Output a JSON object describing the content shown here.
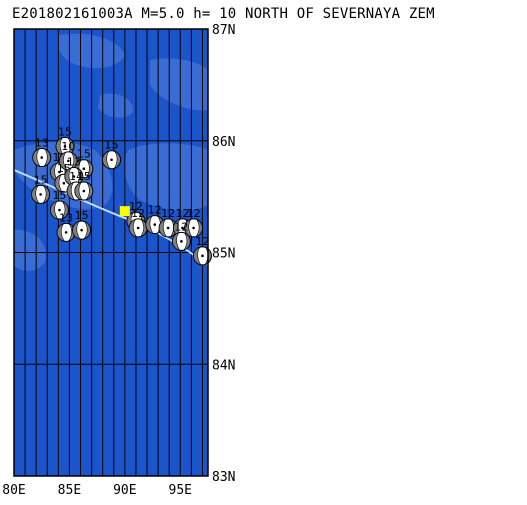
{
  "title": "E201802161003A M=5.0 h= 10 NORTH OF SEVERNAYA ZEM",
  "map": {
    "lon_range": [
      80,
      97.5
    ],
    "lat_range": [
      83,
      87
    ],
    "lat_labels": [
      "87N",
      "86N",
      "85N",
      "84N",
      "83N"
    ],
    "lon_labels": [
      "80E",
      "85E",
      "90E",
      "95E"
    ],
    "colors": {
      "ocean": "#1a55cc",
      "land": "#3f72d6",
      "trench": "#c8dcff",
      "grid": "#000000"
    }
  },
  "mainshock": {
    "lon": 90.0,
    "lat": 85.37,
    "color": "#ffff00"
  },
  "mechanisms": [
    {
      "lon": 82.5,
      "lat": 85.85,
      "label": "13"
    },
    {
      "lon": 84.6,
      "lat": 85.95,
      "label": "15"
    },
    {
      "lon": 84.1,
      "lat": 85.72,
      "label": "13"
    },
    {
      "lon": 84.9,
      "lat": 85.82,
      "label": "10"
    },
    {
      "lon": 86.3,
      "lat": 85.75,
      "label": "15"
    },
    {
      "lon": 88.8,
      "lat": 85.83,
      "label": "15"
    },
    {
      "lon": 82.4,
      "lat": 85.52,
      "label": "15"
    },
    {
      "lon": 84.5,
      "lat": 85.62,
      "label": "15"
    },
    {
      "lon": 85.4,
      "lat": 85.68,
      "label": "13"
    },
    {
      "lon": 85.6,
      "lat": 85.55,
      "label": "14"
    },
    {
      "lon": 86.3,
      "lat": 85.55,
      "label": "15"
    },
    {
      "lon": 84.1,
      "lat": 85.38,
      "label": "15"
    },
    {
      "lon": 84.7,
      "lat": 85.18,
      "label": "13"
    },
    {
      "lon": 86.1,
      "lat": 85.2,
      "label": "15"
    },
    {
      "lon": 91.0,
      "lat": 85.28,
      "label": "12"
    },
    {
      "lon": 91.2,
      "lat": 85.22,
      "label": "12"
    },
    {
      "lon": 92.7,
      "lat": 85.25,
      "label": "12"
    },
    {
      "lon": 93.9,
      "lat": 85.22,
      "label": "12"
    },
    {
      "lon": 95.2,
      "lat": 85.22,
      "label": "12"
    },
    {
      "lon": 96.2,
      "lat": 85.22,
      "label": "12"
    },
    {
      "lon": 95.1,
      "lat": 85.1,
      "label": "12"
    },
    {
      "lon": 97.0,
      "lat": 84.97,
      "label": "12"
    }
  ]
}
